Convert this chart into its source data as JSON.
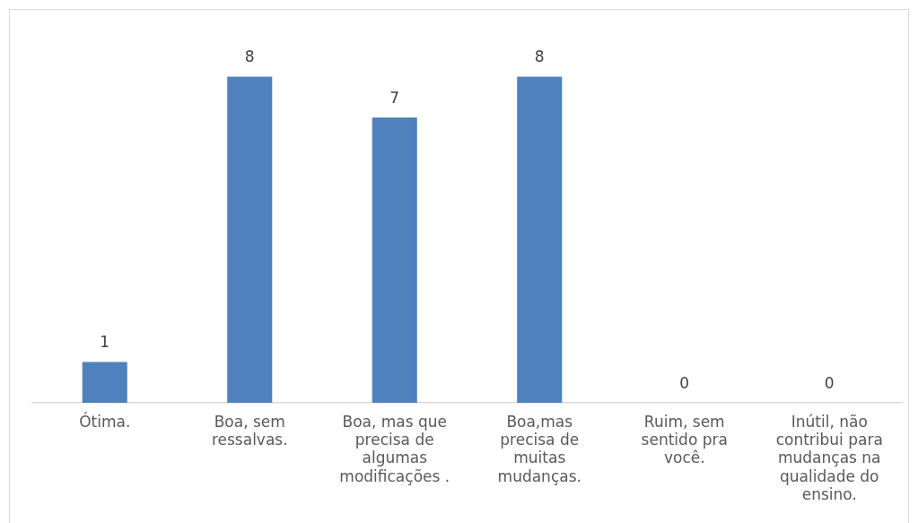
{
  "chart_data": {
    "type": "bar",
    "categories": [
      "Ótima.",
      "Boa, sem ressalvas.",
      "Boa, mas que precisa de algumas modificações .",
      "Boa,mas precisa de muitas mudanças.",
      "Ruim, sem sentido pra você.",
      "Inútil, não contribui para mudanças na qualidade do ensino."
    ],
    "values": [
      1,
      8,
      7,
      8,
      0,
      0
    ],
    "color": "#4f81bd",
    "data_labels": true,
    "grid": false,
    "legend": false
  }
}
